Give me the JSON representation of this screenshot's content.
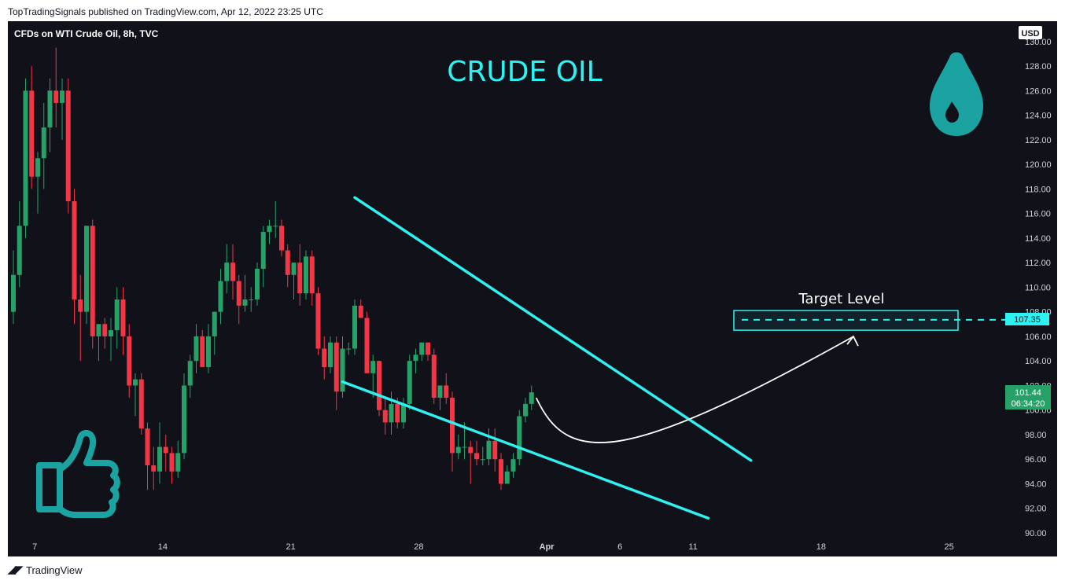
{
  "header": {
    "publisher": "TopTradingSignals published on TradingView.com, Apr 12, 2022 23:25 UTC"
  },
  "footer": {
    "brand": "TradingView"
  },
  "chart_data": {
    "type": "candlestick",
    "symbol": "CFDs on WTI Crude Oil, 8h, TVC",
    "title": "CRUDE OIL",
    "currency": "USD",
    "y_ticks": [
      "90.00",
      "92.00",
      "94.00",
      "96.00",
      "98.00",
      "100.00",
      "102.00",
      "104.00",
      "106.00",
      "108.00",
      "110.00",
      "112.00",
      "114.00",
      "116.00",
      "118.00",
      "120.00",
      "122.00",
      "124.00",
      "126.00",
      "128.00",
      "130.00"
    ],
    "ylim": [
      90,
      130.5
    ],
    "x_ticks": [
      {
        "label": "7",
        "index": 3.5
      },
      {
        "label": "14",
        "index": 24.5
      },
      {
        "label": "21",
        "index": 45.5
      },
      {
        "label": "28",
        "index": 66.5
      },
      {
        "label": "Apr",
        "index": 87.5
      },
      {
        "label": "6",
        "index": 99.5
      },
      {
        "label": "11",
        "index": 111.5
      },
      {
        "label": "18",
        "index": 132.5
      },
      {
        "label": "25",
        "index": 153.5
      }
    ],
    "candles": [
      [
        108.0,
        113.0,
        107.0,
        111.0
      ],
      [
        111.0,
        117.0,
        110.0,
        115.0
      ],
      [
        115.0,
        127.0,
        114.0,
        126.0
      ],
      [
        126.0,
        128.0,
        118.0,
        119.0
      ],
      [
        119.0,
        121.0,
        116.0,
        120.5
      ],
      [
        120.5,
        125.0,
        118.0,
        123.0
      ],
      [
        123.0,
        127.0,
        121.0,
        126.0
      ],
      [
        126.0,
        129.5,
        123.0,
        125.0
      ],
      [
        125.0,
        127.0,
        122.0,
        126.0
      ],
      [
        126.0,
        127.0,
        116.0,
        117.0
      ],
      [
        117.0,
        118.0,
        107.0,
        109.0
      ],
      [
        109.0,
        111.0,
        104.0,
        108.0
      ],
      [
        108.0,
        115.0,
        107.0,
        115.0
      ],
      [
        115.0,
        115.5,
        105.0,
        106.0
      ],
      [
        106.0,
        107.0,
        104.0,
        107.0
      ],
      [
        107.0,
        107.5,
        105.0,
        106.0
      ],
      [
        106.0,
        107.5,
        104.0,
        106.5
      ],
      [
        106.5,
        110.0,
        105.0,
        109.0
      ],
      [
        109.0,
        110.0,
        104.5,
        106.0
      ],
      [
        106.0,
        107.0,
        101.0,
        102.0
      ],
      [
        102.0,
        103.0,
        99.5,
        102.5
      ],
      [
        102.5,
        103.0,
        98.0,
        98.5
      ],
      [
        98.5,
        99.0,
        93.5,
        95.5
      ],
      [
        95.5,
        97.0,
        93.5,
        95.0
      ],
      [
        95.0,
        99.0,
        94.0,
        97.0
      ],
      [
        97.0,
        98.0,
        95.0,
        96.5
      ],
      [
        96.5,
        97.0,
        94.0,
        95.0
      ],
      [
        95.0,
        97.5,
        94.5,
        96.5
      ],
      [
        96.5,
        103.0,
        96.0,
        102.0
      ],
      [
        102.0,
        104.5,
        101.0,
        104.0
      ],
      [
        104.0,
        107.0,
        103.0,
        106.0
      ],
      [
        106.0,
        106.5,
        103.5,
        103.5
      ],
      [
        103.5,
        107.0,
        103.0,
        106.0
      ],
      [
        106.0,
        108.0,
        104.5,
        108.0
      ],
      [
        108.0,
        111.5,
        107.0,
        110.5
      ],
      [
        110.5,
        113.5,
        109.5,
        112.0
      ],
      [
        112.0,
        113.5,
        109.0,
        110.5
      ],
      [
        110.5,
        111.0,
        107.0,
        108.5
      ],
      [
        108.5,
        111.0,
        108.0,
        109.0
      ],
      [
        109.0,
        110.0,
        108.0,
        109.0
      ],
      [
        109.0,
        112.0,
        108.5,
        111.5
      ],
      [
        111.5,
        115.0,
        110.0,
        114.5
      ],
      [
        114.5,
        115.5,
        113.5,
        115.0
      ],
      [
        115.0,
        117.0,
        114.0,
        115.0
      ],
      [
        115.0,
        115.5,
        112.5,
        113.0
      ],
      [
        113.0,
        113.5,
        110.0,
        111.0
      ],
      [
        111.0,
        112.0,
        109.0,
        112.0
      ],
      [
        112.0,
        113.5,
        108.5,
        109.5
      ],
      [
        109.5,
        113.0,
        109.0,
        112.5
      ],
      [
        112.5,
        113.0,
        108.5,
        109.5
      ],
      [
        109.5,
        110.0,
        104.5,
        105.0
      ],
      [
        105.0,
        106.0,
        102.5,
        103.5
      ],
      [
        103.5,
        106.0,
        103.0,
        105.5
      ],
      [
        105.5,
        106.0,
        100.0,
        101.5
      ],
      [
        101.5,
        106.0,
        101.0,
        105.0
      ],
      [
        105.0,
        105.5,
        104.5,
        105.0
      ],
      [
        105.0,
        109.0,
        104.5,
        108.5
      ],
      [
        108.5,
        109.0,
        107.5,
        107.5
      ],
      [
        107.5,
        108.0,
        103.0,
        103.0
      ],
      [
        103.0,
        104.5,
        101.0,
        104.0
      ],
      [
        104.0,
        104.0,
        99.5,
        100.0
      ],
      [
        100.0,
        101.0,
        98.0,
        99.0
      ],
      [
        99.0,
        101.5,
        98.0,
        100.5
      ],
      [
        100.5,
        101.0,
        98.5,
        99.0
      ],
      [
        99.0,
        101.0,
        98.5,
        100.5
      ],
      [
        100.5,
        104.5,
        100.0,
        104.0
      ],
      [
        104.0,
        105.0,
        103.0,
        104.5
      ],
      [
        104.5,
        105.5,
        104.0,
        105.5
      ],
      [
        105.5,
        105.5,
        104.0,
        104.5
      ],
      [
        104.5,
        105.0,
        100.5,
        101.0
      ],
      [
        101.0,
        102.0,
        100.0,
        102.0
      ],
      [
        102.0,
        103.0,
        100.5,
        101.0
      ],
      [
        101.0,
        101.5,
        95.0,
        96.5
      ],
      [
        96.5,
        98.0,
        96.0,
        97.0
      ],
      [
        97.0,
        99.0,
        96.0,
        97.0
      ],
      [
        97.0,
        97.5,
        94.0,
        96.5
      ],
      [
        96.5,
        97.5,
        95.5,
        96.0
      ],
      [
        96.0,
        97.0,
        95.5,
        96.0
      ],
      [
        96.0,
        98.5,
        95.5,
        97.5
      ],
      [
        97.5,
        98.5,
        95.0,
        96.0
      ],
      [
        96.0,
        96.5,
        93.5,
        94.0
      ],
      [
        94.0,
        95.5,
        94.0,
        95.0
      ],
      [
        95.0,
        96.5,
        94.5,
        96.0
      ],
      [
        96.0,
        100.0,
        95.5,
        99.5
      ],
      [
        99.5,
        101.0,
        99.0,
        100.5
      ],
      [
        100.5,
        102.0,
        100.0,
        101.44
      ]
    ],
    "trendlines": [
      {
        "name": "upper",
        "from": [
          56,
          117.3
        ],
        "to": [
          121,
          95.9
        ],
        "color": "#2ef2f2"
      },
      {
        "name": "lower",
        "from": [
          54,
          102.3
        ],
        "to": [
          114,
          91.2
        ],
        "color": "#2ef2f2"
      }
    ],
    "target": {
      "label": "Target Level",
      "value": 107.35,
      "zone": [
        106.5,
        108.1
      ],
      "color": "#2ef2f2"
    },
    "last_price": {
      "value": "101.44",
      "countdown": "06:34:20",
      "color": "#26a269"
    },
    "colors": {
      "up": "#26a269",
      "down": "#f23645",
      "background": "#101119"
    },
    "icons": [
      "thumbs-up-icon",
      "oil-drop-icon"
    ]
  }
}
